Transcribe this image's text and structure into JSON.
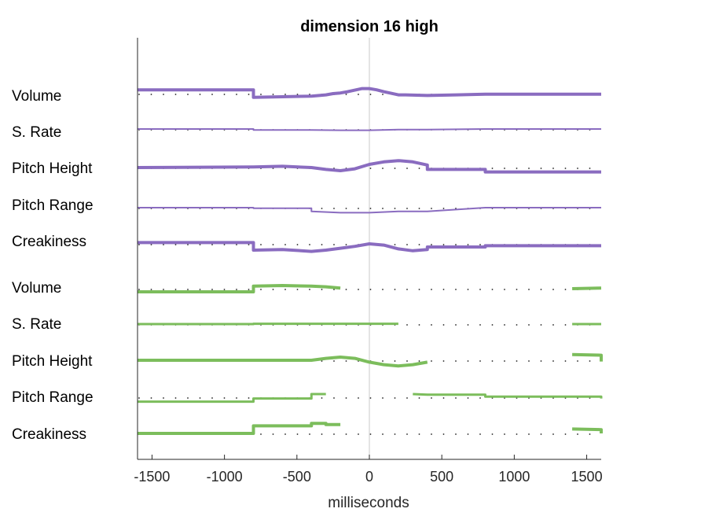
{
  "chart_data": {
    "type": "line",
    "title": "dimension 16 high",
    "xlabel": "milliseconds",
    "xlim": [
      -1600,
      1600
    ],
    "xticks": [
      -1500,
      -1000,
      -500,
      0,
      500,
      1000,
      1500
    ],
    "xtick_labels": [
      "-1500",
      "-1000",
      "-500",
      "0",
      "500",
      "1000",
      "1500"
    ],
    "zero_line": true,
    "grid": false,
    "colors": {
      "purple": "#8a6cc0",
      "green": "#7cbd5c",
      "dots": "#222222",
      "zero": "#c8c8c8",
      "axis": "#262626"
    },
    "rows": [
      {
        "label": "Volume",
        "color": "#8a6cc0",
        "width": "thick",
        "points": [
          [
            -1600,
            -0.06
          ],
          [
            -800,
            -0.06
          ],
          [
            -800,
            0.06
          ],
          [
            -600,
            0.05
          ],
          [
            -400,
            0.04
          ],
          [
            -300,
            0.02
          ],
          [
            -250,
            0.0
          ],
          [
            -200,
            -0.01
          ],
          [
            -150,
            -0.03
          ],
          [
            -50,
            -0.08
          ],
          [
            0,
            -0.08
          ],
          [
            50,
            -0.06
          ],
          [
            100,
            -0.03
          ],
          [
            200,
            0.02
          ],
          [
            250,
            0.02
          ],
          [
            400,
            0.03
          ],
          [
            600,
            0.02
          ],
          [
            800,
            0.01
          ],
          [
            1600,
            0.01
          ]
        ]
      },
      {
        "label": "S. Rate",
        "color": "#8a6cc0",
        "width": "thin",
        "points": [
          [
            -1600,
            0.0
          ],
          [
            -800,
            0.0
          ],
          [
            -800,
            0.015
          ],
          [
            -400,
            0.015
          ],
          [
            -200,
            0.02
          ],
          [
            0,
            0.02
          ],
          [
            200,
            0.01
          ],
          [
            400,
            0.01
          ],
          [
            800,
            0.0
          ],
          [
            1600,
            0.0
          ]
        ]
      },
      {
        "label": "Pitch Height",
        "color": "#8a6cc0",
        "width": "thick",
        "points": [
          [
            -1600,
            0.0
          ],
          [
            -800,
            -0.01
          ],
          [
            -600,
            -0.02
          ],
          [
            -400,
            0.0
          ],
          [
            -300,
            0.03
          ],
          [
            -200,
            0.05
          ],
          [
            -100,
            0.02
          ],
          [
            0,
            -0.05
          ],
          [
            100,
            -0.09
          ],
          [
            200,
            -0.11
          ],
          [
            300,
            -0.09
          ],
          [
            400,
            -0.04
          ],
          [
            400,
            0.03
          ],
          [
            800,
            0.03
          ],
          [
            800,
            0.07
          ],
          [
            1600,
            0.07
          ]
        ]
      },
      {
        "label": "Pitch Range",
        "color": "#8a6cc0",
        "width": "thin",
        "points": [
          [
            -1600,
            0.0
          ],
          [
            -800,
            0.0
          ],
          [
            -800,
            0.01
          ],
          [
            -400,
            0.01
          ],
          [
            -400,
            0.06
          ],
          [
            -200,
            0.08
          ],
          [
            0,
            0.08
          ],
          [
            200,
            0.06
          ],
          [
            400,
            0.06
          ],
          [
            800,
            0.0
          ],
          [
            1600,
            0.0
          ]
        ]
      },
      {
        "label": "Creakiness",
        "color": "#8a6cc0",
        "width": "thick",
        "points": [
          [
            -1600,
            -0.02
          ],
          [
            -800,
            -0.02
          ],
          [
            -800,
            0.1
          ],
          [
            -600,
            0.09
          ],
          [
            -400,
            0.12
          ],
          [
            -300,
            0.1
          ],
          [
            -200,
            0.07
          ],
          [
            -100,
            0.04
          ],
          [
            0,
            0.0
          ],
          [
            100,
            0.02
          ],
          [
            200,
            0.08
          ],
          [
            300,
            0.11
          ],
          [
            400,
            0.09
          ],
          [
            400,
            0.05
          ],
          [
            800,
            0.05
          ],
          [
            800,
            0.03
          ],
          [
            1600,
            0.03
          ]
        ]
      },
      {
        "label": "Volume",
        "color": "#7cbd5c",
        "width": "thick",
        "segments": [
          [
            [
              -1600,
              0.05
            ],
            [
              -800,
              0.05
            ],
            [
              -800,
              -0.04
            ],
            [
              -600,
              -0.05
            ],
            [
              -400,
              -0.04
            ],
            [
              -300,
              -0.03
            ],
            [
              -200,
              -0.01
            ]
          ],
          [
            [
              1400,
              0.0
            ],
            [
              1600,
              -0.01
            ]
          ]
        ]
      },
      {
        "label": "S. Rate",
        "color": "#7cbd5c",
        "width": "medium",
        "segments": [
          [
            [
              -1600,
              0.0
            ],
            [
              -800,
              0.0
            ],
            [
              -800,
              -0.005
            ],
            [
              -200,
              -0.005
            ],
            [
              200,
              -0.005
            ]
          ],
          [
            [
              1400,
              0.0
            ],
            [
              1600,
              0.0
            ]
          ]
        ]
      },
      {
        "label": "Pitch Height",
        "color": "#7cbd5c",
        "width": "thick",
        "segments": [
          [
            [
              -1600,
              0.0
            ],
            [
              -800,
              0.0
            ],
            [
              -400,
              0.0
            ],
            [
              -300,
              -0.03
            ],
            [
              -200,
              -0.05
            ],
            [
              -100,
              -0.03
            ],
            [
              0,
              0.03
            ],
            [
              100,
              0.07
            ],
            [
              200,
              0.09
            ],
            [
              300,
              0.07
            ],
            [
              400,
              0.03
            ]
          ],
          [
            [
              1400,
              -0.09
            ],
            [
              1600,
              -0.08
            ],
            [
              1600,
              0.02
            ]
          ]
        ]
      },
      {
        "label": "Pitch Range",
        "color": "#7cbd5c",
        "width": "medium",
        "segments": [
          [
            [
              -1600,
              0.07
            ],
            [
              -800,
              0.07
            ],
            [
              -800,
              0.02
            ],
            [
              -400,
              0.02
            ],
            [
              -400,
              -0.05
            ],
            [
              -300,
              -0.05
            ]
          ],
          [
            [
              300,
              -0.05
            ],
            [
              400,
              -0.04
            ],
            [
              800,
              -0.04
            ],
            [
              800,
              -0.01
            ],
            [
              1600,
              -0.01
            ],
            [
              1600,
              0.02
            ]
          ]
        ]
      },
      {
        "label": "Creakiness",
        "color": "#7cbd5c",
        "width": "thick",
        "segments": [
          [
            [
              -1600,
              0.0
            ],
            [
              -800,
              0.0
            ],
            [
              -800,
              -0.12
            ],
            [
              -400,
              -0.12
            ],
            [
              -400,
              -0.16
            ],
            [
              -300,
              -0.16
            ],
            [
              -300,
              -0.14
            ],
            [
              -200,
              -0.14
            ]
          ],
          [
            [
              1400,
              -0.07
            ],
            [
              1600,
              -0.06
            ],
            [
              1600,
              0.0
            ]
          ]
        ]
      }
    ]
  }
}
